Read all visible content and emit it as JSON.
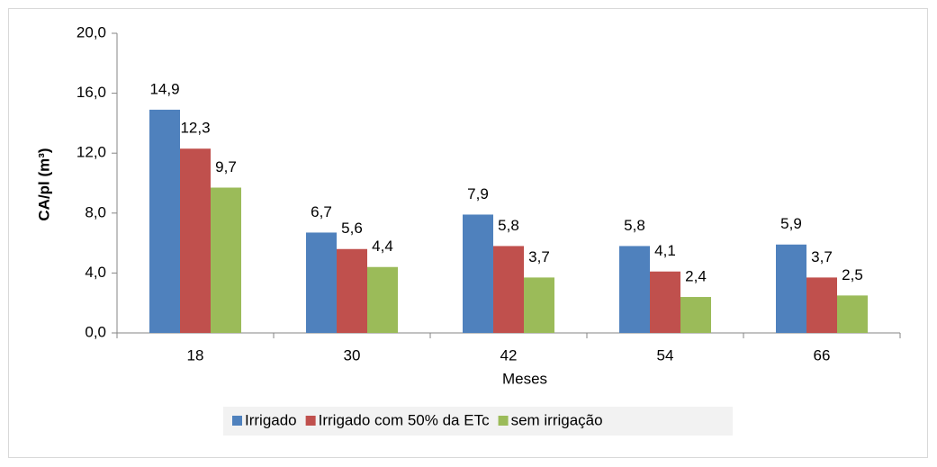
{
  "chart_data": {
    "type": "bar",
    "x_label": "Meses",
    "y_label": "CA/pl (m³)",
    "categories": [
      "18",
      "30",
      "42",
      "54",
      "66"
    ],
    "series": [
      {
        "name": "Irrigado",
        "color": "#4f81bd",
        "values": [
          14.9,
          6.7,
          7.9,
          5.8,
          5.9
        ],
        "value_labels": [
          "14,9",
          "6,7",
          "7,9",
          "5,8",
          "5,9"
        ]
      },
      {
        "name": "Irrigado com 50% da ETc",
        "color": "#c0504d",
        "values": [
          12.3,
          5.6,
          5.8,
          4.1,
          3.7
        ],
        "value_labels": [
          "12,3",
          "5,6",
          "5,8",
          "4,1",
          "3,7"
        ]
      },
      {
        "name": "sem irrigação",
        "color": "#9bbb59",
        "values": [
          9.7,
          4.4,
          3.7,
          2.4,
          2.5
        ],
        "value_labels": [
          "9,7",
          "4,4",
          "3,7",
          "2,4",
          "2,5"
        ]
      }
    ],
    "ylim": [
      0,
      20
    ],
    "yticks": [
      {
        "value": 0,
        "label": "0,0"
      },
      {
        "value": 4,
        "label": "4,0"
      },
      {
        "value": 8,
        "label": "8,0"
      },
      {
        "value": 12,
        "label": "12,0"
      },
      {
        "value": 16,
        "label": "16,0"
      },
      {
        "value": 20,
        "label": "20,0"
      }
    ],
    "grid": false,
    "legend": "bottom"
  }
}
